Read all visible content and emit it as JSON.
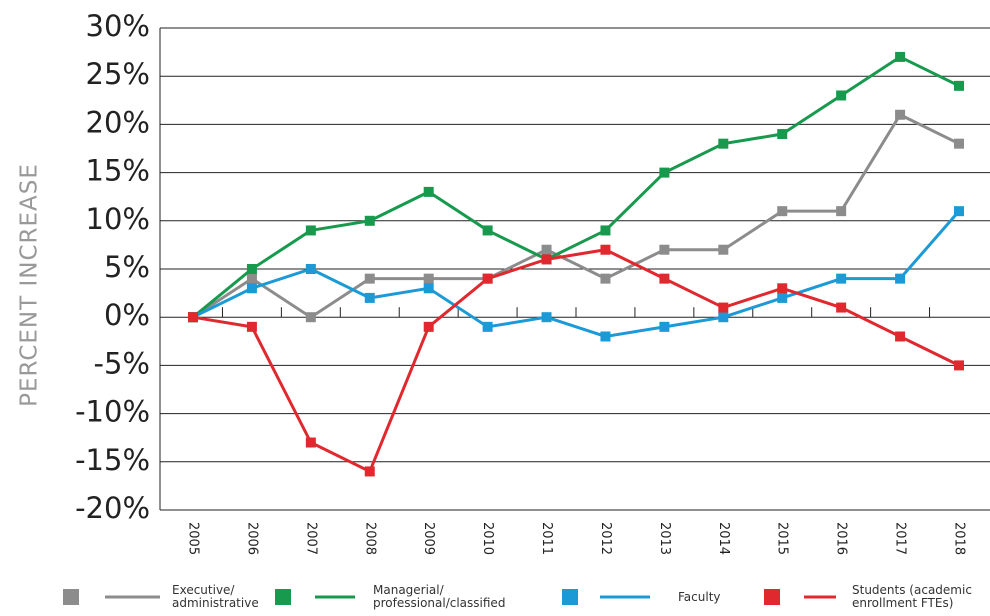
{
  "chart_data": {
    "type": "line",
    "y_axis_label": "PERCENT INCREASE",
    "categories": [
      "2005",
      "2006",
      "2007",
      "2008",
      "2009",
      "2010",
      "2011",
      "2012",
      "2013",
      "2014",
      "2015",
      "2016",
      "2017",
      "2018"
    ],
    "series": [
      {
        "name": "Executive/ administrative",
        "color": "#8c8c8c",
        "values": [
          0,
          4,
          0,
          4,
          4,
          4,
          7,
          4,
          7,
          7,
          11,
          11,
          21,
          18
        ]
      },
      {
        "name": "Managerial/ professional/classified",
        "color": "#179a4e",
        "values": [
          0,
          5,
          9,
          10,
          13,
          9,
          6,
          9,
          15,
          18,
          19,
          23,
          27,
          24
        ]
      },
      {
        "name": "Faculty",
        "color": "#1b9ad6",
        "values": [
          0,
          3,
          5,
          2,
          3,
          -1,
          0,
          -2,
          -1,
          0,
          2,
          4,
          4,
          11
        ]
      },
      {
        "name": "Students (academic enrollment FTEs)",
        "color": "#e0292e",
        "values": [
          0,
          -1,
          -13,
          -16,
          -1,
          4,
          6,
          7,
          4,
          1,
          3,
          1,
          -2,
          -5
        ]
      }
    ],
    "ylim": [
      -20,
      30
    ],
    "yticks": [
      {
        "value": -20,
        "label": "-20%"
      },
      {
        "value": -15,
        "label": "-15%"
      },
      {
        "value": -10,
        "label": "-10%"
      },
      {
        "value": -5,
        "label": "-5%"
      },
      {
        "value": 0,
        "label": "0%"
      },
      {
        "value": 5,
        "label": "5%"
      },
      {
        "value": 10,
        "label": "10%"
      },
      {
        "value": 15,
        "label": "15%"
      },
      {
        "value": 20,
        "label": "20%"
      },
      {
        "value": 25,
        "label": "25%"
      },
      {
        "value": 30,
        "label": "30%"
      }
    ],
    "grid": true
  }
}
